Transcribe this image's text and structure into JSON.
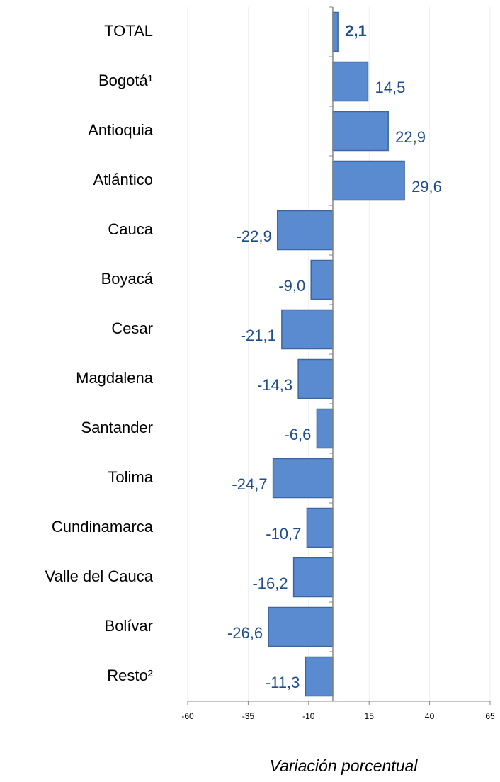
{
  "chart_data": {
    "type": "hbar",
    "xlabel": "Variación porcentual",
    "categories": [
      "TOTAL",
      "Bogotá¹",
      "Antioquia",
      "Atlántico",
      "Cauca",
      "Boyacá",
      "Cesar",
      "Magdalena",
      "Santander",
      "Tolima",
      "Cundinamarca",
      "Valle del Cauca",
      "Bolívar",
      "Resto²"
    ],
    "values": [
      2.1,
      14.5,
      22.9,
      29.6,
      -22.9,
      -9.0,
      -21.1,
      -14.3,
      -6.6,
      -24.7,
      -10.7,
      -16.2,
      -26.6,
      -11.3
    ],
    "value_labels": [
      "2,1",
      "14,5",
      "22,9",
      "29,6",
      "-22,9",
      "-9,0",
      "-21,1",
      "-14,3",
      "-6,6",
      "-24,7",
      "-10,7",
      "-16,2",
      "-26,6",
      "-11,3"
    ],
    "color": "#5a8ad0",
    "xlim": [
      -60,
      65
    ],
    "xticks": [
      -60,
      -35,
      -10,
      15,
      40,
      65
    ],
    "grid": true
  }
}
